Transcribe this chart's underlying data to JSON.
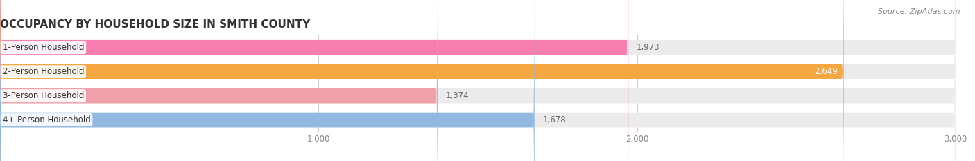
{
  "title": "OCCUPANCY BY HOUSEHOLD SIZE IN SMITH COUNTY",
  "source": "Source: ZipAtlas.com",
  "categories": [
    "1-Person Household",
    "2-Person Household",
    "3-Person Household",
    "4+ Person Household"
  ],
  "values": [
    1973,
    2649,
    1374,
    1678
  ],
  "bar_colors": [
    "#f87eb0",
    "#f5a742",
    "#f0a0a8",
    "#90b8e0"
  ],
  "bar_bg_color": "#ebebeb",
  "xlim": [
    0,
    3000
  ],
  "xticks": [
    1000,
    2000,
    3000
  ],
  "xtick_labels": [
    "1,000",
    "2,000",
    "3,000"
  ],
  "value_labels": [
    "1,973",
    "2,649",
    "1,374",
    "1,678"
  ],
  "value_label_inside": [
    false,
    true,
    false,
    false
  ],
  "title_fontsize": 11,
  "label_fontsize": 8.5,
  "value_fontsize": 8.5,
  "source_fontsize": 8,
  "background_color": "#ffffff",
  "bar_height": 0.62
}
